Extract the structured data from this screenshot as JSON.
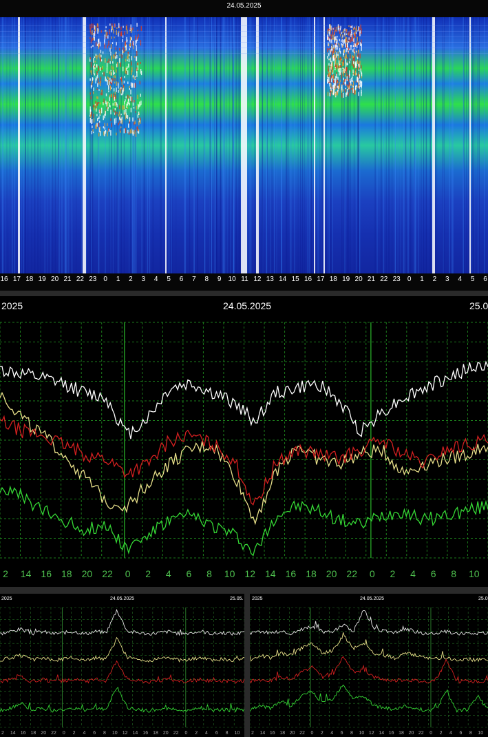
{
  "spectrogram": {
    "date": "24.05.2025",
    "hour_labels": [
      "16",
      "17",
      "18",
      "19",
      "20",
      "21",
      "22",
      "23",
      "0",
      "1",
      "2",
      "3",
      "4",
      "5",
      "6",
      "7",
      "8",
      "9",
      "10",
      "11",
      "12",
      "13",
      "14",
      "15",
      "16",
      "17",
      "18",
      "19",
      "20",
      "21",
      "22",
      "23",
      "0",
      "1",
      "2",
      "3",
      "4",
      "5",
      "6"
    ],
    "colors": {
      "background": "#1a1aa8",
      "band": "#26e03a",
      "peak": "#ffffff"
    }
  },
  "schumann": {
    "date_left": "2025",
    "date_center": "24.05.2025",
    "date_right": "25.0",
    "x_tick_labels": [
      "2",
      "14",
      "16",
      "18",
      "20",
      "22",
      "0",
      "2",
      "4",
      "6",
      "8",
      "10",
      "12",
      "14",
      "16",
      "18",
      "20",
      "22",
      "0",
      "2",
      "4",
      "6",
      "8",
      "10"
    ],
    "grid_color": "#1f8a1f",
    "tick_color": "#4ec04e"
  },
  "amplitude_left": {
    "date_left": "2025",
    "date_center": "24.05.2025",
    "date_right": "25.05.",
    "x_tick_labels": [
      "2",
      "14",
      "16",
      "18",
      "20",
      "22",
      "0",
      "2",
      "4",
      "6",
      "8",
      "10",
      "12",
      "14",
      "16",
      "18",
      "20",
      "22",
      "0",
      "2",
      "4",
      "6",
      "8",
      "10"
    ]
  },
  "amplitude_right": {
    "date_left": "2025",
    "date_center": "24.05.2025",
    "date_right": "25.0",
    "x_tick_labels": [
      "2",
      "14",
      "16",
      "18",
      "20",
      "22",
      "0",
      "2",
      "4",
      "6",
      "8",
      "10",
      "12",
      "14",
      "16",
      "18",
      "20",
      "22",
      "0",
      "2",
      "4",
      "6",
      "8",
      "10"
    ]
  },
  "chart_data": [
    {
      "type": "heatmap",
      "title": "24.05.2025",
      "x_tick_labels": [
        "16",
        "17",
        "18",
        "19",
        "20",
        "21",
        "22",
        "23",
        "0",
        "1",
        "2",
        "3",
        "4",
        "5",
        "6",
        "7",
        "8",
        "9",
        "10",
        "11",
        "12",
        "13",
        "14",
        "15",
        "16",
        "17",
        "18",
        "19",
        "20",
        "21",
        "22",
        "23",
        "0",
        "1",
        "2",
        "3",
        "4",
        "5",
        "6"
      ],
      "bands_top_to_bottom": [
        "high",
        "mid-high",
        "mid",
        "low",
        "lowest"
      ],
      "notes": "Spectrogram; bright vertical bursts near 1-2h, 11h and 19-20h"
    },
    {
      "type": "line",
      "title": "24.05.2025",
      "x_tick_labels": [
        "2",
        "14",
        "16",
        "18",
        "20",
        "22",
        "0",
        "2",
        "4",
        "6",
        "8",
        "10",
        "12",
        "14",
        "16",
        "18",
        "20",
        "22",
        "0",
        "2",
        "4",
        "6",
        "8",
        "10"
      ],
      "series": [
        {
          "color": "#ffffff",
          "values": [
            0.8,
            0.78,
            0.76,
            0.74,
            0.7,
            0.68,
            0.52,
            0.6,
            0.72,
            0.74,
            0.7,
            0.66,
            0.58,
            0.7,
            0.72,
            0.74,
            0.66,
            0.54,
            0.62,
            0.68,
            0.72,
            0.76,
            0.8,
            0.82
          ]
        },
        {
          "color": "#e8e08a",
          "values": [
            0.7,
            0.6,
            0.52,
            0.44,
            0.34,
            0.24,
            0.22,
            0.32,
            0.4,
            0.46,
            0.48,
            0.36,
            0.16,
            0.36,
            0.48,
            0.42,
            0.4,
            0.44,
            0.46,
            0.36,
            0.4,
            0.42,
            0.44,
            0.48
          ]
        },
        {
          "color": "#d42020",
          "values": [
            0.58,
            0.54,
            0.52,
            0.48,
            0.44,
            0.42,
            0.36,
            0.4,
            0.5,
            0.52,
            0.48,
            0.42,
            0.22,
            0.4,
            0.46,
            0.44,
            0.42,
            0.46,
            0.5,
            0.44,
            0.4,
            0.46,
            0.48,
            0.5
          ]
        },
        {
          "color": "#35d835",
          "values": [
            0.3,
            0.26,
            0.2,
            0.16,
            0.12,
            0.14,
            0.04,
            0.1,
            0.16,
            0.18,
            0.14,
            0.1,
            0.02,
            0.18,
            0.22,
            0.2,
            0.16,
            0.14,
            0.18,
            0.2,
            0.16,
            0.18,
            0.2,
            0.22
          ]
        }
      ],
      "grid": true
    },
    {
      "type": "line",
      "title": "24.05.2025",
      "x_tick_labels": [
        "2",
        "14",
        "16",
        "18",
        "20",
        "22",
        "0",
        "2",
        "4",
        "6",
        "8",
        "10",
        "12",
        "14",
        "16",
        "18",
        "20",
        "22",
        "0",
        "2",
        "4",
        "6",
        "8",
        "10"
      ],
      "series": [
        {
          "color": "#e8e8e8",
          "values": [
            0.78,
            0.8,
            0.82,
            0.78,
            0.8,
            0.78,
            0.79,
            0.8,
            0.78,
            0.8,
            0.79,
            0.98,
            0.8,
            0.79,
            0.78,
            0.79,
            0.8,
            0.78,
            0.79,
            0.8,
            0.78,
            0.79,
            0.78,
            0.79
          ]
        },
        {
          "color": "#e8e08a",
          "values": [
            0.56,
            0.58,
            0.6,
            0.56,
            0.58,
            0.56,
            0.57,
            0.58,
            0.56,
            0.58,
            0.57,
            0.74,
            0.58,
            0.57,
            0.56,
            0.57,
            0.58,
            0.56,
            0.57,
            0.58,
            0.56,
            0.57,
            0.56,
            0.57
          ]
        },
        {
          "color": "#d42020",
          "values": [
            0.38,
            0.4,
            0.42,
            0.38,
            0.4,
            0.38,
            0.39,
            0.4,
            0.38,
            0.4,
            0.39,
            0.56,
            0.4,
            0.39,
            0.38,
            0.39,
            0.4,
            0.38,
            0.39,
            0.4,
            0.38,
            0.39,
            0.38,
            0.39
          ]
        },
        {
          "color": "#35d835",
          "values": [
            0.14,
            0.16,
            0.2,
            0.14,
            0.16,
            0.14,
            0.15,
            0.16,
            0.14,
            0.16,
            0.15,
            0.34,
            0.16,
            0.15,
            0.14,
            0.15,
            0.16,
            0.14,
            0.15,
            0.16,
            0.14,
            0.15,
            0.14,
            0.15
          ]
        }
      ],
      "grid": true
    },
    {
      "type": "line",
      "title": "24.05.2025",
      "x_tick_labels": [
        "2",
        "14",
        "16",
        "18",
        "20",
        "22",
        "0",
        "2",
        "4",
        "6",
        "8",
        "10",
        "12",
        "14",
        "16",
        "18",
        "20",
        "22",
        "0",
        "2",
        "4",
        "6",
        "8",
        "10"
      ],
      "series": [
        {
          "color": "#e8e8e8",
          "values": [
            0.78,
            0.8,
            0.79,
            0.8,
            0.78,
            0.82,
            0.84,
            0.8,
            0.79,
            0.86,
            0.8,
            0.98,
            0.82,
            0.8,
            0.79,
            0.82,
            0.8,
            0.78,
            0.79,
            0.8,
            0.78,
            0.79,
            0.78,
            0.79
          ]
        },
        {
          "color": "#e8e08a",
          "values": [
            0.56,
            0.6,
            0.58,
            0.62,
            0.6,
            0.66,
            0.7,
            0.62,
            0.64,
            0.76,
            0.66,
            0.7,
            0.62,
            0.6,
            0.58,
            0.62,
            0.6,
            0.58,
            0.57,
            0.58,
            0.56,
            0.57,
            0.56,
            0.57
          ]
        },
        {
          "color": "#d42020",
          "values": [
            0.38,
            0.4,
            0.39,
            0.42,
            0.4,
            0.46,
            0.5,
            0.42,
            0.44,
            0.58,
            0.46,
            0.48,
            0.42,
            0.4,
            0.39,
            0.4,
            0.39,
            0.38,
            0.4,
            0.56,
            0.38,
            0.39,
            0.38,
            0.39
          ]
        },
        {
          "color": "#35d835",
          "values": [
            0.14,
            0.18,
            0.16,
            0.22,
            0.18,
            0.26,
            0.3,
            0.2,
            0.24,
            0.36,
            0.24,
            0.26,
            0.18,
            0.16,
            0.15,
            0.18,
            0.16,
            0.14,
            0.16,
            0.3,
            0.14,
            0.15,
            0.26,
            0.15
          ]
        }
      ],
      "grid": true
    }
  ]
}
